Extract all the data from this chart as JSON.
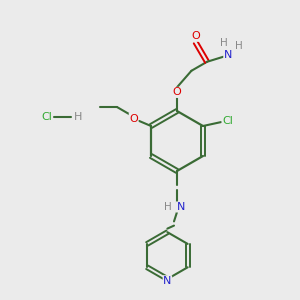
{
  "background_color": "#ebebeb",
  "bond_color": "#3a6b35",
  "atom_colors": {
    "O": "#dd0000",
    "N": "#2222cc",
    "Cl": "#33aa33",
    "H": "#888888",
    "C": "#3a6b35"
  },
  "figsize": [
    3.0,
    3.0
  ],
  "dpi": 100
}
